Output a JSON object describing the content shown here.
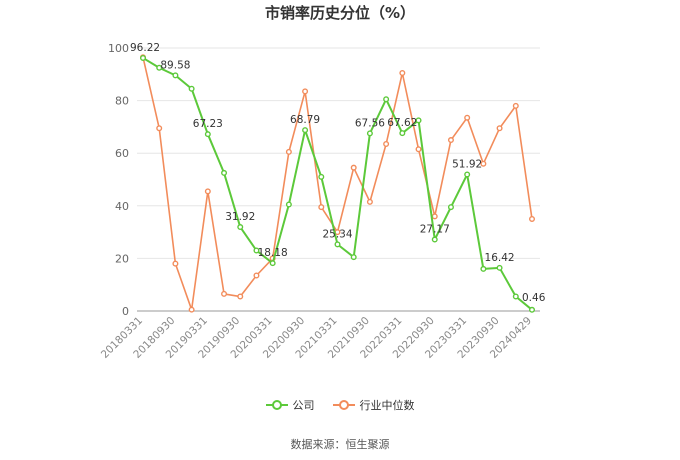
{
  "chart_data": {
    "type": "line",
    "title": "市销率历史分位（%）",
    "xlabel": "",
    "ylabel": "",
    "ylim": [
      0,
      100
    ],
    "yticks": [
      0,
      20,
      40,
      60,
      80,
      100
    ],
    "grid": true,
    "legend_position": "bottom",
    "x": [
      "20180331",
      "20180630",
      "20180930",
      "20181231",
      "20190331",
      "20190630",
      "20190930",
      "20191231",
      "20200331",
      "20200630",
      "20200930",
      "20201231",
      "20210331",
      "20210630",
      "20210930",
      "20211231",
      "20220331",
      "20220630",
      "20220930",
      "20221231",
      "20230331",
      "20230630",
      "20230930",
      "20231231",
      "20240429"
    ],
    "x_tick_labels": [
      "20180331",
      "20180930",
      "20190331",
      "20190930",
      "20200331",
      "20200930",
      "20210331",
      "20210930",
      "20220331",
      "20220930",
      "20230331",
      "20230930",
      "20240429"
    ],
    "series": [
      {
        "name": "公司",
        "color": "#5cc93a",
        "values": [
          96.22,
          92.5,
          89.58,
          84.5,
          67.23,
          52.5,
          31.92,
          23.0,
          18.18,
          40.5,
          68.79,
          51.0,
          25.34,
          20.5,
          67.56,
          80.5,
          67.62,
          72.5,
          27.17,
          39.5,
          51.92,
          16.0,
          16.42,
          5.5,
          0.46
        ],
        "labels": {
          "0": "96.22",
          "2": "89.58",
          "4": "67.23",
          "6": "31.92",
          "8": "18.18",
          "10": "68.79",
          "12": "25.34",
          "14": "67.56",
          "16": "67.62",
          "18": "27.17",
          "20": "51.92",
          "22": "16.42",
          "24": "0.46"
        }
      },
      {
        "name": "行业中位数",
        "color": "#f28c5b",
        "values": [
          96.5,
          69.5,
          18.0,
          0.5,
          45.5,
          6.5,
          5.5,
          13.5,
          20.0,
          60.5,
          83.5,
          39.5,
          30.0,
          54.5,
          41.5,
          63.5,
          90.5,
          61.5,
          36.0,
          65.0,
          73.5,
          56.0,
          69.5,
          78.0,
          35.0
        ]
      }
    ]
  },
  "legend": {
    "items": [
      {
        "label": "公司",
        "color": "#5cc93a"
      },
      {
        "label": "行业中位数",
        "color": "#f28c5b"
      }
    ]
  },
  "footer": {
    "source": "数据来源：恒生聚源"
  }
}
